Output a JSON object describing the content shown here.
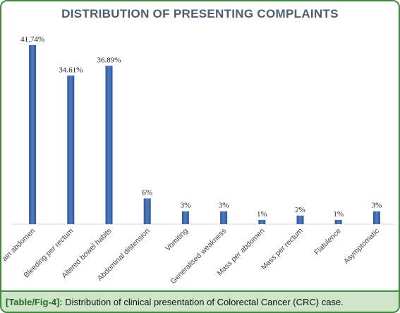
{
  "chart_data": {
    "type": "bar",
    "title": "DISTRIBUTION OF PRESENTING COMPLAINTS",
    "categories": [
      "Pain abdomen",
      "Bleeding per rectum",
      "Altered bowel habits",
      "Abdominal distension",
      "Vomiting",
      "Generalised weakness",
      "Mass per abdomen",
      "Mass per rectum",
      "Flatulence",
      "Asymptomatic"
    ],
    "values": [
      41.74,
      34.61,
      36.89,
      6,
      3,
      3,
      1,
      2,
      1,
      3
    ],
    "data_labels": [
      "41.74%",
      "34.61%",
      "36.89%",
      "6%",
      "3%",
      "3%",
      "1%",
      "2%",
      "1%",
      "3%"
    ],
    "ylim": [
      0,
      45
    ],
    "grid": false,
    "bar_color": "#3d66a8"
  },
  "caption": {
    "label": "[Table/Fig-4]:",
    "text": "Distribution of clinical presentation of Colorectal Cancer (CRC) case."
  },
  "colors": {
    "frame": "#3d8a3f",
    "caption_bg": "#cfe4c8",
    "title": "#4e5d6c"
  }
}
